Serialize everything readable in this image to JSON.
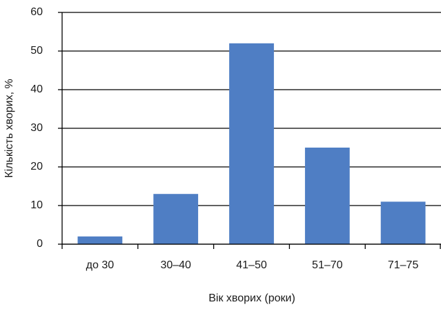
{
  "chart_data": {
    "type": "bar",
    "x_label": "Вік хворих (роки)",
    "y_label": "Кількість хворих, %",
    "categories": [
      "до 30",
      "30–40",
      "41–50",
      "51–70",
      "71–75"
    ],
    "values": [
      2,
      13,
      52,
      25,
      11
    ],
    "color": "#4f7ec4",
    "ylim": [
      0,
      60
    ],
    "yticks": [
      0,
      10,
      20,
      30,
      40,
      50,
      60
    ],
    "grid": true
  }
}
